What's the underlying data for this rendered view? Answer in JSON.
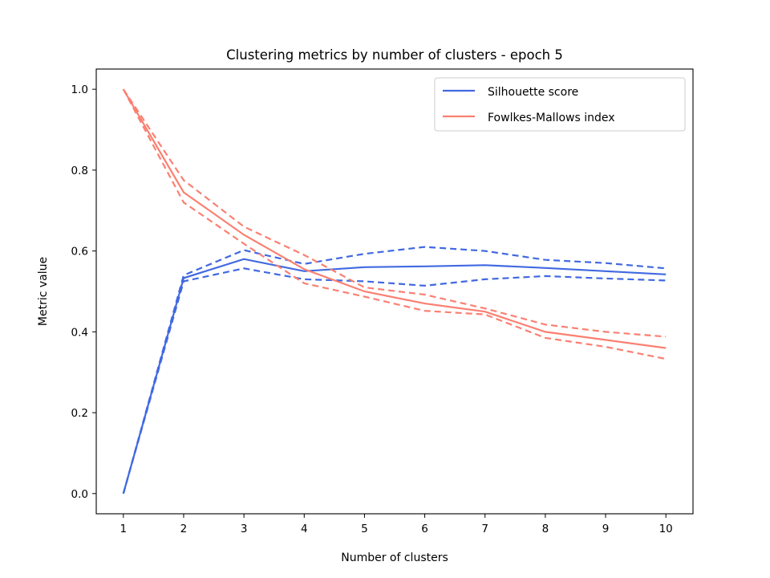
{
  "chart_data": {
    "type": "line",
    "title": "Clustering metrics by number of clusters - epoch 5",
    "xlabel": "Number of clusters",
    "ylabel": "Metric value",
    "x": [
      1,
      2,
      3,
      4,
      5,
      6,
      7,
      8,
      9,
      10
    ],
    "xlim": [
      0.55,
      10.45
    ],
    "ylim": [
      -0.05,
      1.05
    ],
    "xticks": [
      "1",
      "2",
      "3",
      "4",
      "5",
      "6",
      "7",
      "8",
      "9",
      "10"
    ],
    "yticks": [
      "0.0",
      "0.2",
      "0.4",
      "0.6",
      "0.8",
      "1.0"
    ],
    "grid": false,
    "legend_position": "top-right",
    "series": [
      {
        "name": "Silhouette score",
        "color": "#4169E1",
        "values": [
          0.0,
          0.533,
          0.58,
          0.55,
          0.56,
          0.562,
          0.565,
          0.558,
          0.55,
          0.542
        ],
        "upper": [
          0.0,
          0.54,
          0.602,
          0.568,
          0.593,
          0.61,
          0.6,
          0.578,
          0.57,
          0.557
        ],
        "lower": [
          0.0,
          0.525,
          0.557,
          0.53,
          0.525,
          0.514,
          0.53,
          0.538,
          0.532,
          0.527
        ]
      },
      {
        "name": "Fowlkes-Mallows index",
        "color": "#FA8072",
        "values": [
          1.0,
          0.745,
          0.64,
          0.555,
          0.5,
          0.47,
          0.45,
          0.4,
          0.38,
          0.36
        ],
        "upper": [
          1.0,
          0.775,
          0.66,
          0.59,
          0.51,
          0.492,
          0.458,
          0.418,
          0.4,
          0.388
        ],
        "lower": [
          1.0,
          0.72,
          0.618,
          0.52,
          0.487,
          0.452,
          0.443,
          0.385,
          0.363,
          0.333
        ]
      }
    ]
  }
}
